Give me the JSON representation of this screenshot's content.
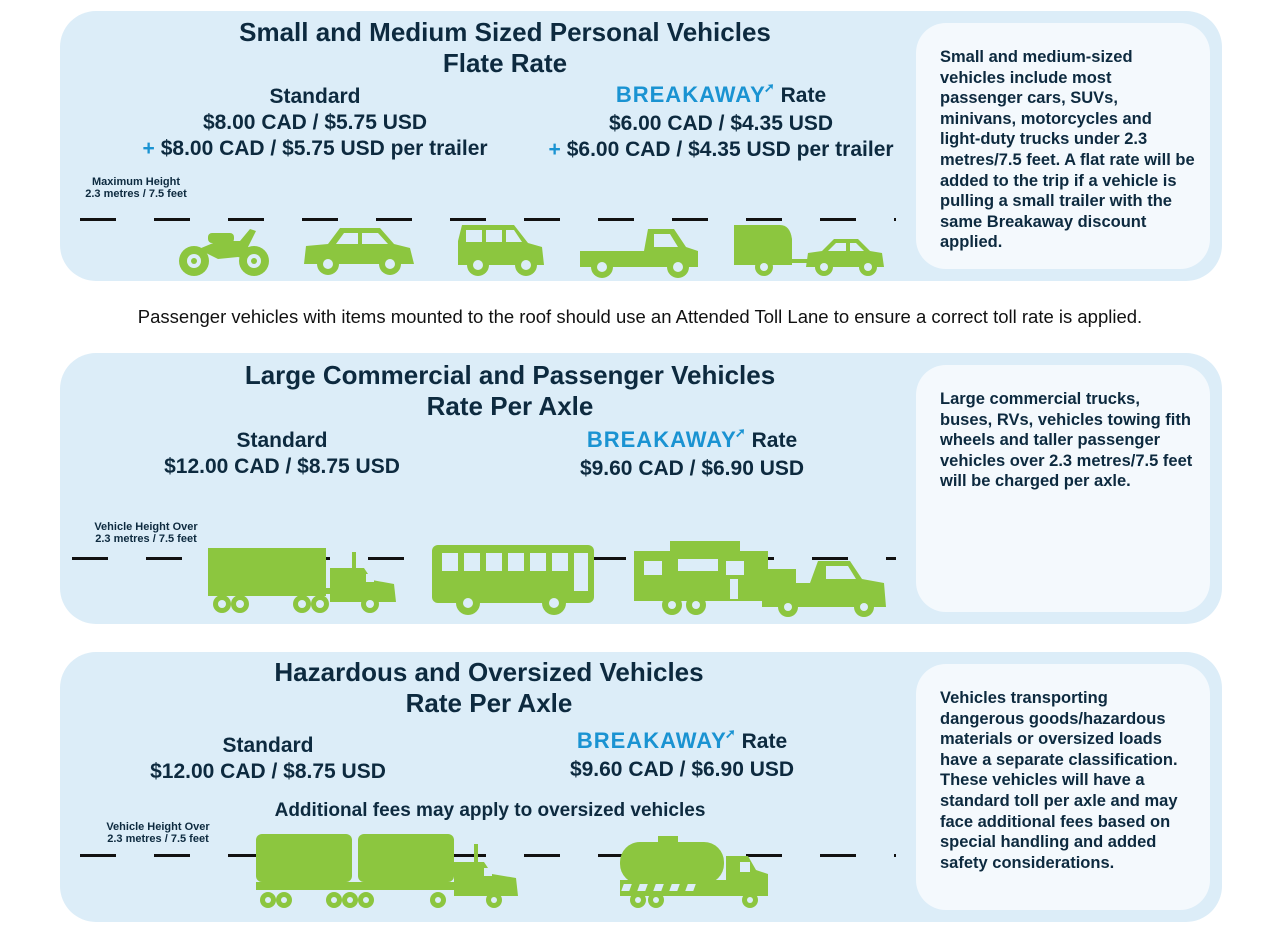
{
  "colors": {
    "panel": "#dcedf8",
    "accent": "#1a93d2",
    "vehicle": "#8cc63f",
    "text": "#0d2a3f"
  },
  "small": {
    "title_line1": "Small and Medium Sized Personal Vehicles",
    "title_line2": "Flate Rate",
    "standard_heading": "Standard",
    "standard_value": "$8.00 CAD / $5.75 USD",
    "standard_trailer": "$8.00 CAD / $5.75 USD per trailer",
    "breakaway_brand": "BREAKAWAY",
    "breakaway_rate": "Rate",
    "breakaway_value": "$6.00 CAD / $4.35 USD",
    "breakaway_trailer": "$6.00 CAD / $4.35 USD per trailer",
    "plus": "+",
    "height_line1": "Maximum Height",
    "height_line2": "2.3 metres / 7.5 feet",
    "info": "Small and medium-sized vehicles include most passenger cars, SUVs, minivans, motorcycles and light-duty trucks under 2.3 metres/7.5 feet. A flat rate will be added to the trip if a vehicle is pulling a small trailer with the same Breakaway discount applied.",
    "icons": [
      "motorcycle-icon",
      "car-icon",
      "suv-icon",
      "pickup-truck-icon",
      "car-with-trailer-icon"
    ]
  },
  "note": "Passenger vehicles with items mounted to the roof should use an Attended Toll Lane to ensure a correct toll rate is applied.",
  "large": {
    "title_line1": "Large Commercial and Passenger Vehicles",
    "title_line2": "Rate Per Axle",
    "standard_heading": "Standard",
    "standard_value": "$12.00 CAD / $8.75 USD",
    "breakaway_brand": "BREAKAWAY",
    "breakaway_rate": "Rate",
    "breakaway_value": "$9.60 CAD / $6.90 USD",
    "height_line1": "Vehicle Height Over",
    "height_line2": "2.3 metres / 7.5 feet",
    "info": "Large commercial trucks, buses, RVs, vehicles towing fith wheels and taller passenger vehicles over 2.3 metres/7.5 feet will be charged per axle.",
    "icons": [
      "semi-truck-icon",
      "bus-icon",
      "rv-fifth-wheel-icon"
    ]
  },
  "hazard": {
    "title_line1": "Hazardous and Oversized Vehicles",
    "title_line2": "Rate Per Axle",
    "standard_heading": "Standard",
    "standard_value": "$12.00 CAD / $8.75 USD",
    "breakaway_brand": "BREAKAWAY",
    "breakaway_rate": "Rate",
    "breakaway_value": "$9.60 CAD / $6.90 USD",
    "additional": "Additional fees may apply to oversized vehicles",
    "height_line1": "Vehicle Height Over",
    "height_line2": "2.3 metres / 7.5 feet",
    "info": "Vehicles transporting dangerous goods/hazardous materials or oversized loads have a separate classification. These vehicles will have a standard toll per axle and may face additional fees based on special handling and added safety considerations.",
    "icons": [
      "oversized-truck-icon",
      "tanker-truck-icon"
    ]
  }
}
